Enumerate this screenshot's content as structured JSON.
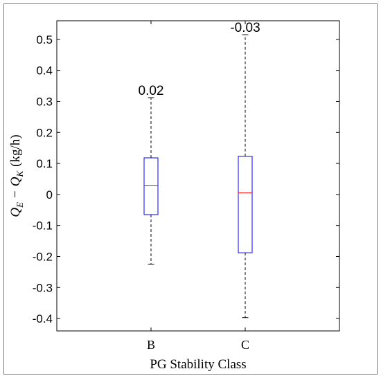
{
  "chart_data": {
    "type": "box",
    "xlabel": "PG Stability Class",
    "ylabel_parts": {
      "q1": "Q",
      "s1": "E",
      "minus": "−",
      "q2": "Q",
      "s2": "K",
      "unit": "(kg/h)"
    },
    "categories": [
      "B",
      "C"
    ],
    "ylim": [
      -0.44,
      0.56
    ],
    "yticks": [
      -0.4,
      -0.3,
      -0.2,
      -0.1,
      0,
      0.1,
      0.2,
      0.3,
      0.4,
      0.5
    ],
    "ytick_labels": [
      "-0.4",
      "-0.3",
      "-0.2",
      "-0.1",
      "0",
      "0.1",
      "0.2",
      "0.3",
      "0.4",
      "0.5"
    ],
    "boxes": [
      {
        "category": "B",
        "whisker_low": -0.225,
        "q1": -0.065,
        "median": 0.03,
        "q3": 0.118,
        "whisker_high": 0.312,
        "annotation": "0.02"
      },
      {
        "category": "C",
        "whisker_low": -0.397,
        "q1": -0.188,
        "median": 0.005,
        "q3": 0.123,
        "whisker_high": 0.515,
        "annotation": "-0.03"
      }
    ],
    "colors": {
      "box": "#0000ff",
      "median": "#ff0000",
      "whisker": "#000000"
    }
  }
}
